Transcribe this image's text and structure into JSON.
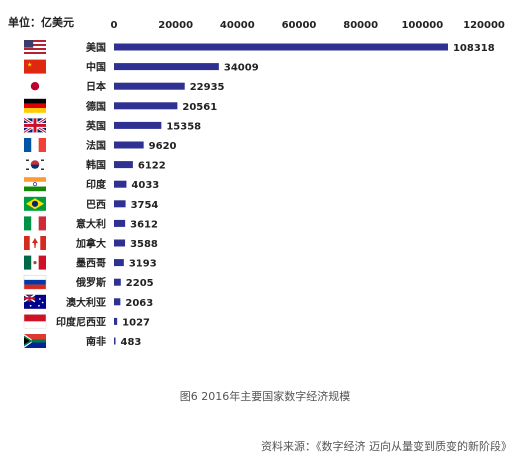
{
  "unit_label": "单位：亿美元",
  "caption": "图6  2016年主要国家数字经济规模",
  "source": "资料来源：《数字经济 迈向从量变到质变的新阶段》",
  "colors": {
    "bar": "#2e3192"
  },
  "chart_data": {
    "type": "bar",
    "orientation": "horizontal",
    "xlim": [
      0,
      120000
    ],
    "xticks": [
      "0",
      "20000",
      "40000",
      "60000",
      "80000",
      "100000",
      "120000"
    ],
    "xtick_values": [
      0,
      20000,
      40000,
      60000,
      80000,
      100000,
      120000
    ],
    "categories": [
      "美国",
      "中国",
      "日本",
      "德国",
      "英国",
      "法国",
      "韩国",
      "印度",
      "巴西",
      "意大利",
      "加拿大",
      "墨西哥",
      "俄罗斯",
      "澳大利亚",
      "印度尼西亚",
      "南非"
    ],
    "flags": [
      "us-flag",
      "china-flag",
      "japan-flag",
      "germany-flag",
      "uk-flag",
      "france-flag",
      "korea-flag",
      "india-flag",
      "brazil-flag",
      "italy-flag",
      "canada-flag",
      "mexico-flag",
      "russia-flag",
      "australia-flag",
      "indonesia-flag",
      "south-africa-flag"
    ],
    "values": [
      108318,
      34009,
      22935,
      20561,
      15358,
      9620,
      6122,
      4033,
      3754,
      3612,
      3588,
      3193,
      2205,
      2063,
      1027,
      483
    ],
    "grid": false,
    "legend": "none"
  }
}
